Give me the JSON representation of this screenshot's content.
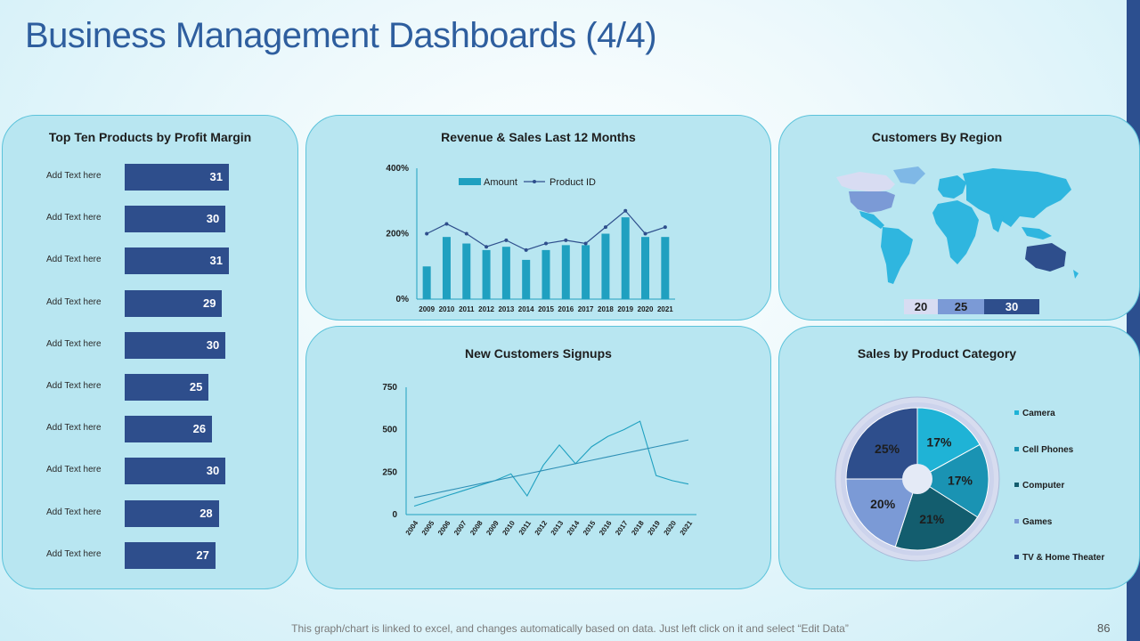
{
  "title": "Business Management Dashboards (4/4)",
  "footer": "This graph/chart is linked to excel, and changes automatically based on data. Just left click on it and select “Edit Data”",
  "page_number": "86",
  "colors": {
    "accent": "#2e4e8c",
    "teal": "#1fa0c0",
    "panel": "#b8e6f1",
    "panel_border": "#5cc3db",
    "strip": "#2c4f8f"
  },
  "panels": {
    "top_products": "Top Ten Products by Profit Margin",
    "revenue": "Revenue & Sales Last 12 Months",
    "customers_region": "Customers By Region",
    "signups": "New Customers Signups",
    "sales_category": "Sales by Product Category"
  },
  "region_scale": [
    "20",
    "25",
    "30"
  ],
  "chart_data": [
    {
      "type": "bar",
      "orientation": "horizontal",
      "title": "Top Ten Products by Profit Margin",
      "categories": [
        "Add Text here",
        "Add Text here",
        "Add Text here",
        "Add Text here",
        "Add Text here",
        "Add Text here",
        "Add Text here",
        "Add Text here",
        "Add Text here",
        "Add Text here"
      ],
      "values": [
        31,
        30,
        31,
        29,
        30,
        25,
        26,
        30,
        28,
        27
      ]
    },
    {
      "type": "bar",
      "title": "Revenue & Sales Last 12 Months",
      "categories": [
        "2009",
        "2010",
        "2011",
        "2012",
        "2013",
        "2014",
        "2015",
        "2016",
        "2017",
        "2018",
        "2019",
        "2020",
        "2021"
      ],
      "yticks": [
        "0%",
        "200%",
        "400%"
      ],
      "ylim": [
        0,
        400
      ],
      "series": [
        {
          "name": "Amount",
          "type": "bar",
          "values": [
            100,
            190,
            170,
            150,
            160,
            120,
            150,
            165,
            165,
            200,
            250,
            190,
            190
          ]
        },
        {
          "name": "Product ID",
          "type": "line",
          "values": [
            200,
            230,
            200,
            160,
            180,
            150,
            170,
            180,
            170,
            220,
            270,
            200,
            220
          ]
        }
      ]
    },
    {
      "type": "line",
      "title": "New Customers Signups",
      "categories": [
        "2004",
        "2005",
        "2006",
        "2007",
        "2008",
        "2009",
        "2010",
        "2011",
        "2012",
        "2013",
        "2014",
        "2015",
        "2016",
        "2017",
        "2018",
        "2019",
        "2020",
        "2021"
      ],
      "yticks": [
        "0",
        "250",
        "500",
        "750"
      ],
      "ylim": [
        0,
        750
      ],
      "series": [
        {
          "values": [
            50,
            80,
            110,
            140,
            170,
            200,
            240,
            110,
            290,
            410,
            300,
            400,
            460,
            500,
            550,
            230,
            200,
            180
          ]
        },
        {
          "values": [
            100,
            120,
            140,
            160,
            180,
            200,
            220,
            240,
            260,
            280,
            300,
            320,
            340,
            360,
            380,
            400,
            420,
            440
          ]
        }
      ]
    },
    {
      "type": "pie",
      "title": "Sales by Product Category",
      "labels": [
        "Camera",
        "Cell Phones",
        "Computer",
        "Games",
        "TV & Home Theater"
      ],
      "values": [
        17,
        17,
        21,
        20,
        25
      ],
      "value_labels": [
        "17%",
        "17%",
        "21%",
        "20%",
        "25%"
      ],
      "colors": [
        "#1fb3d6",
        "#1a93b3",
        "#135d6e",
        "#7b9ad6",
        "#2e4e8c"
      ]
    }
  ]
}
